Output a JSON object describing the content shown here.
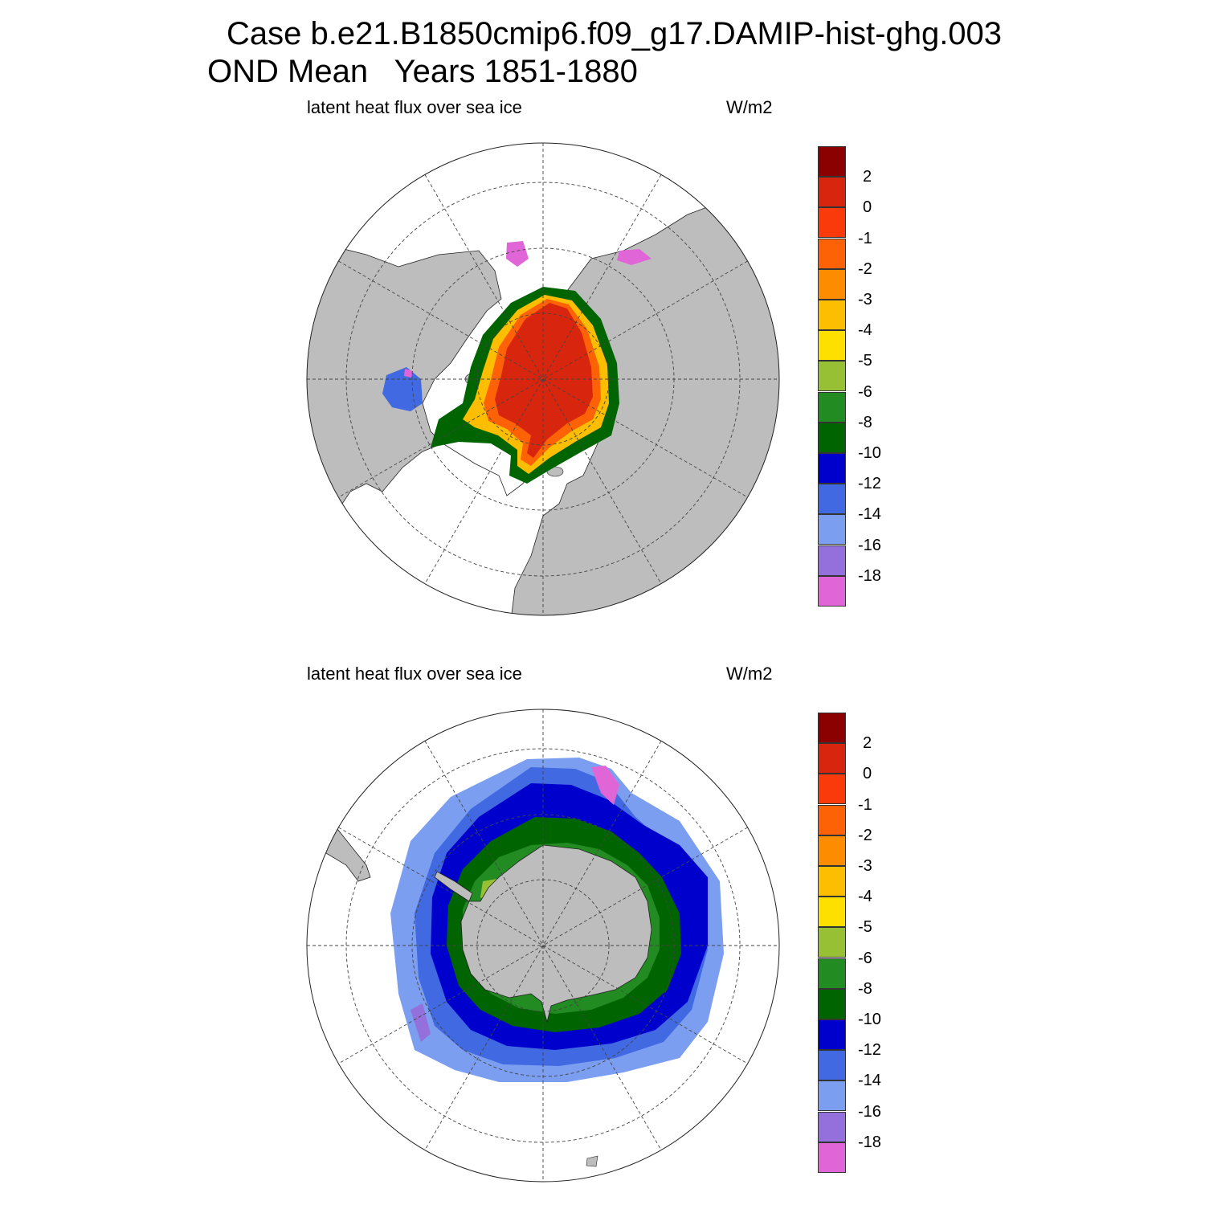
{
  "header": {
    "title_line_1": "Case b.e21.B1850cmip6.f09_g17.DAMIP-hist-ghg.003",
    "title_line_2": "OND Mean   Years 1851-1880"
  },
  "panels": [
    {
      "field_label": "latent heat flux over sea ice",
      "units_label": "W/m2",
      "hemisphere": "north"
    },
    {
      "field_label": "latent heat flux over sea ice",
      "units_label": "W/m2",
      "hemisphere": "south"
    }
  ],
  "colorbar": {
    "levels": [
      "2",
      "0",
      "-1",
      "-2",
      "-3",
      "-4",
      "-5",
      "-6",
      "-8",
      "-10",
      "-12",
      "-14",
      "-16",
      "-18"
    ],
    "colors": [
      "#8b0000",
      "#d8260e",
      "#fb3a0b",
      "#fe6207",
      "#fe8c00",
      "#fdbd00",
      "#fde000",
      "#98c034",
      "#228b22",
      "#006400",
      "#0000cd",
      "#4169e1",
      "#7b9ef0",
      "#9370db",
      "#e066d8"
    ]
  },
  "colors": {
    "land": "#bdbdbd",
    "ocean": "#ffffff"
  }
}
